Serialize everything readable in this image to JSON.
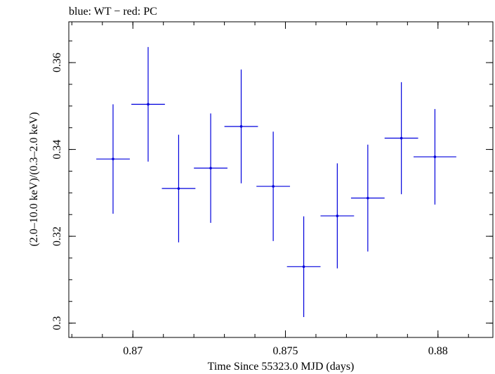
{
  "chart_data": {
    "type": "scatter",
    "title": "blue: WT − red: PC",
    "xlabel": "Time Since 55323.0 MJD (days)",
    "ylabel": "(2.0–10.0 keV)/(0.3–2.0 keV)",
    "xlim": [
      0.8679,
      0.8818
    ],
    "ylim": [
      0.2967,
      0.3694
    ],
    "x_ticks": [
      0.87,
      0.875,
      0.88
    ],
    "x_tick_labels": [
      "0.87",
      "0.875",
      "0.88"
    ],
    "y_ticks": [
      0.3,
      0.32,
      0.34,
      0.36
    ],
    "y_tick_labels": [
      "0.3",
      "0.32",
      "0.34",
      "0.36"
    ],
    "x_minor_step": 0.001,
    "y_minor_step": 0.005,
    "grid": false,
    "series": [
      {
        "color": "#0000dd",
        "points": [
          {
            "x": 0.86935,
            "y": 0.3378,
            "xerr": 0.00055,
            "yerr": 0.0126
          },
          {
            "x": 0.8705,
            "y": 0.3504,
            "xerr": 0.00055,
            "yerr": 0.0132
          },
          {
            "x": 0.8715,
            "y": 0.331,
            "xerr": 0.00055,
            "yerr": 0.0124
          },
          {
            "x": 0.87255,
            "y": 0.3357,
            "xerr": 0.00055,
            "yerr": 0.0126
          },
          {
            "x": 0.87355,
            "y": 0.3453,
            "xerr": 0.00055,
            "yerr": 0.0131
          },
          {
            "x": 0.8746,
            "y": 0.3315,
            "xerr": 0.00055,
            "yerr": 0.0126
          },
          {
            "x": 0.8756,
            "y": 0.313,
            "xerr": 0.00055,
            "yerr": 0.0116
          },
          {
            "x": 0.8767,
            "y": 0.3247,
            "xerr": 0.00055,
            "yerr": 0.0121
          },
          {
            "x": 0.8777,
            "y": 0.3288,
            "xerr": 0.00055,
            "yerr": 0.0123
          },
          {
            "x": 0.8788,
            "y": 0.3426,
            "xerr": 0.00055,
            "yerr": 0.0129
          },
          {
            "x": 0.8799,
            "y": 0.3383,
            "xerr": 0.0007,
            "yerr": 0.011
          }
        ]
      }
    ]
  }
}
